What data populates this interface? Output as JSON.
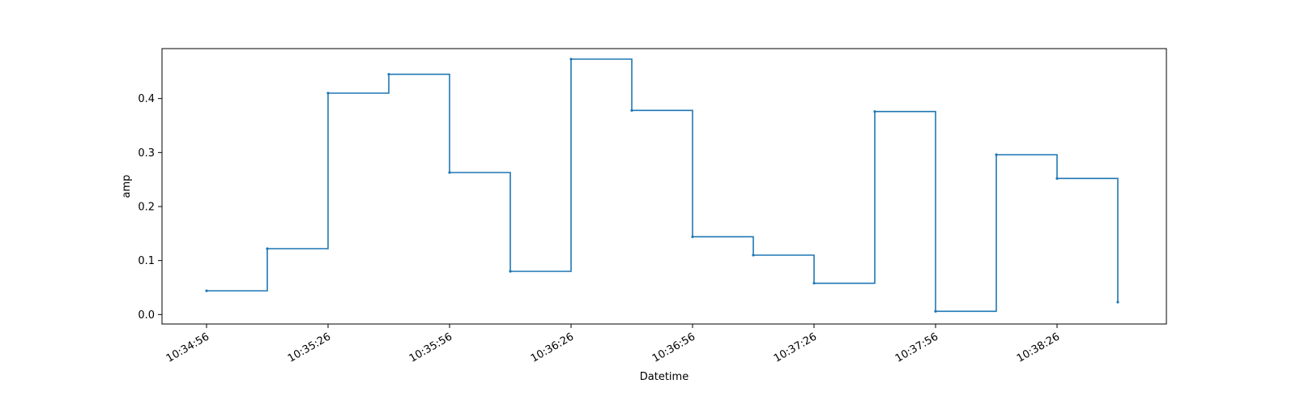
{
  "chart_data": {
    "type": "line",
    "step": "post",
    "xlabel": "Datetime",
    "ylabel": "amp",
    "x_range": [
      "10:34:45",
      "10:38:53"
    ],
    "ylim": [
      -0.0175,
      0.4925
    ],
    "x_ticks": [
      "10:34:56",
      "10:35:26",
      "10:35:56",
      "10:36:26",
      "10:36:56",
      "10:37:26",
      "10:37:56",
      "10:38:26"
    ],
    "y_ticks": [
      "0.0",
      "0.1",
      "0.2",
      "0.3",
      "0.4"
    ],
    "grid": false,
    "legend": "none",
    "colors": {
      "line": "#1f77b4",
      "axis": "#000000"
    },
    "series": [
      {
        "x": [
          "10:34:56",
          "10:35:11",
          "10:35:26",
          "10:35:41",
          "10:35:56",
          "10:36:11",
          "10:36:26",
          "10:36:41",
          "10:36:56",
          "10:37:11",
          "10:37:26",
          "10:37:41",
          "10:37:56",
          "10:38:11",
          "10:38:26",
          "10:38:41"
        ],
        "y": [
          0.044,
          0.122,
          0.41,
          0.445,
          0.263,
          0.08,
          0.473,
          0.378,
          0.144,
          0.11,
          0.058,
          0.376,
          0.006,
          0.296,
          0.252,
          0.023
        ]
      }
    ]
  }
}
